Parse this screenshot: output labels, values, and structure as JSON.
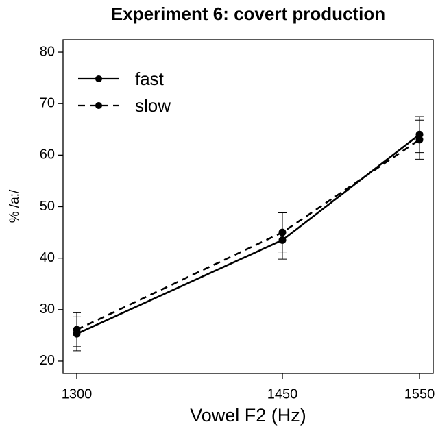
{
  "chart_data": {
    "type": "line",
    "title": "Experiment 6: covert production",
    "xlabel": "Vowel F2 (Hz)",
    "ylabel": "% /a:/",
    "x": [
      1300,
      1450,
      1550
    ],
    "series": [
      {
        "name": "fast",
        "color": "#000000",
        "linestyle": "solid",
        "values": [
          25.3,
          43.5,
          64.0
        ],
        "errors": [
          3.3,
          3.7,
          3.5
        ]
      },
      {
        "name": "slow",
        "color": "#000000",
        "linestyle": "dashed",
        "values": [
          26.1,
          45.0,
          63.0
        ],
        "errors": [
          3.3,
          3.8,
          3.8
        ]
      }
    ],
    "xlim": [
      1290,
      1560
    ],
    "ylim": [
      17.6,
      82.4
    ],
    "xticks": [
      1300,
      1450,
      1550
    ],
    "yticks": [
      20,
      30,
      40,
      50,
      60,
      70,
      80
    ],
    "legend": "topleft"
  }
}
